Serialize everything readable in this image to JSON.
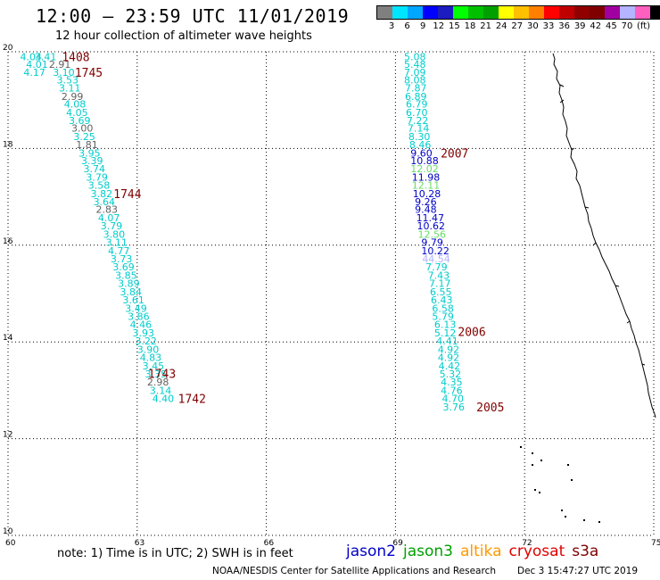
{
  "header": {
    "title": "12:00 – 23:59 UTC 11/01/2019",
    "subtitle": "12 hour collection of altimeter wave heights"
  },
  "legend": {
    "colors": [
      "#808080",
      "#00e5ff",
      "#00a6ff",
      "#0000ff",
      "#1c1cc0",
      "#00ff00",
      "#00c000",
      "#00a000",
      "#ffff00",
      "#ffc000",
      "#ff8000",
      "#ff0000",
      "#c00000",
      "#900000",
      "#800000",
      "#a000a0",
      "#b4b4ff",
      "#ff60c0",
      "#000000"
    ],
    "labels": [
      "3",
      "6",
      "9",
      "12",
      "15",
      "18",
      "21",
      "24",
      "27",
      "30",
      "33",
      "36",
      "39",
      "42",
      "45",
      "70"
    ],
    "unit": "(ft)"
  },
  "axes": {
    "x_ticks": [
      "60",
      "63",
      "66",
      "69",
      "72",
      "75"
    ],
    "y_ticks": [
      "10",
      "12",
      "14",
      "16",
      "18",
      "20"
    ],
    "xlim": [
      60,
      75
    ],
    "ylim": [
      10,
      20
    ]
  },
  "colors": {
    "jason2": "#0000c8",
    "jason3": "#00a000",
    "altika": "#ff9900",
    "cryosat": "#e00000",
    "s3a": "#800000",
    "cyan": "#00cccc",
    "gray": "#606060",
    "lightgreen": "#66dd66",
    "lavender": "#b4b4ff"
  },
  "tracks": [
    {
      "name": "1745",
      "label_lon": 61.55,
      "label_lat": 19.58,
      "label_color": "s3a",
      "points": [
        {
          "lon": 60.28,
          "lat": 19.9,
          "v": "4.04",
          "c": "cyan"
        },
        {
          "lon": 60.62,
          "lat": 19.9,
          "v": "3.41",
          "c": "cyan"
        },
        {
          "lon": 60.42,
          "lat": 19.74,
          "v": "4.01",
          "c": "cyan"
        },
        {
          "lon": 60.95,
          "lat": 19.74,
          "v": "2.91",
          "c": "gray"
        },
        {
          "lon": 60.36,
          "lat": 19.58,
          "v": "4.17",
          "c": "cyan"
        },
        {
          "lon": 61.04,
          "lat": 19.58,
          "v": "3.10",
          "c": "cyan"
        },
        {
          "lon": 61.13,
          "lat": 19.42,
          "v": "3.53",
          "c": "cyan"
        },
        {
          "lon": 61.18,
          "lat": 19.25,
          "v": "3.11",
          "c": "cyan"
        },
        {
          "lon": 61.24,
          "lat": 19.08,
          "v": "2.99",
          "c": "gray"
        },
        {
          "lon": 61.3,
          "lat": 18.92,
          "v": "4.08",
          "c": "cyan"
        },
        {
          "lon": 61.35,
          "lat": 18.75,
          "v": "4.05",
          "c": "cyan"
        },
        {
          "lon": 61.41,
          "lat": 18.58,
          "v": "3.69",
          "c": "cyan"
        },
        {
          "lon": 61.47,
          "lat": 18.42,
          "v": "3.00",
          "c": "gray"
        },
        {
          "lon": 61.52,
          "lat": 18.25,
          "v": "3.25",
          "c": "cyan"
        },
        {
          "lon": 61.58,
          "lat": 18.08,
          "v": "1.81",
          "c": "gray"
        },
        {
          "lon": 61.64,
          "lat": 17.91,
          "v": "3.95",
          "c": "cyan"
        },
        {
          "lon": 61.7,
          "lat": 17.75,
          "v": "3.39",
          "c": "cyan"
        },
        {
          "lon": 61.75,
          "lat": 17.58,
          "v": "3.74",
          "c": "cyan"
        },
        {
          "lon": 61.81,
          "lat": 17.41,
          "v": "3.79",
          "c": "cyan"
        },
        {
          "lon": 61.86,
          "lat": 17.24,
          "v": "3.58",
          "c": "cyan"
        },
        {
          "lon": 61.92,
          "lat": 17.07,
          "v": "3.82",
          "c": "cyan"
        },
        {
          "lon": 61.98,
          "lat": 16.9,
          "v": "3.64",
          "c": "cyan"
        },
        {
          "lon": 62.04,
          "lat": 16.74,
          "v": "2.83",
          "c": "gray"
        },
        {
          "lon": 62.09,
          "lat": 16.57,
          "v": "4.07",
          "c": "cyan"
        },
        {
          "lon": 62.15,
          "lat": 16.4,
          "v": "3.79",
          "c": "cyan"
        },
        {
          "lon": 62.21,
          "lat": 16.23,
          "v": "3.80",
          "c": "cyan"
        },
        {
          "lon": 62.27,
          "lat": 16.06,
          "v": "3.11",
          "c": "cyan"
        },
        {
          "lon": 62.32,
          "lat": 15.89,
          "v": "4.77",
          "c": "cyan"
        },
        {
          "lon": 62.38,
          "lat": 15.72,
          "v": "3.73",
          "c": "cyan"
        }
      ]
    },
    {
      "name": "1744",
      "label_lon": 62.45,
      "label_lat": 17.07,
      "label_color": "s3a",
      "points": []
    },
    {
      "name": "1743",
      "label_lon": 63.25,
      "label_lat": 13.35,
      "label_color": "s3a",
      "points": [
        {
          "lon": 62.43,
          "lat": 15.55,
          "v": "3.69",
          "c": "cyan"
        },
        {
          "lon": 62.49,
          "lat": 15.38,
          "v": "3.85",
          "c": "cyan"
        },
        {
          "lon": 62.55,
          "lat": 15.21,
          "v": "3.89",
          "c": "cyan"
        },
        {
          "lon": 62.6,
          "lat": 15.04,
          "v": "3.84",
          "c": "cyan"
        },
        {
          "lon": 62.66,
          "lat": 14.87,
          "v": "3.61",
          "c": "cyan"
        },
        {
          "lon": 62.72,
          "lat": 14.7,
          "v": "3.49",
          "c": "cyan"
        },
        {
          "lon": 62.78,
          "lat": 14.53,
          "v": "3.86",
          "c": "cyan"
        },
        {
          "lon": 62.83,
          "lat": 14.36,
          "v": "4.46",
          "c": "cyan"
        },
        {
          "lon": 62.89,
          "lat": 14.19,
          "v": "3.93",
          "c": "cyan"
        },
        {
          "lon": 62.95,
          "lat": 14.02,
          "v": "3.22",
          "c": "cyan"
        },
        {
          "lon": 63.0,
          "lat": 13.85,
          "v": "3.90",
          "c": "cyan"
        },
        {
          "lon": 63.06,
          "lat": 13.68,
          "v": "4.83",
          "c": "cyan"
        },
        {
          "lon": 63.12,
          "lat": 13.51,
          "v": "3.45",
          "c": "cyan"
        },
        {
          "lon": 63.18,
          "lat": 13.34,
          "v": "3.35",
          "c": "cyan"
        },
        {
          "lon": 63.23,
          "lat": 13.17,
          "v": "2.98",
          "c": "gray"
        },
        {
          "lon": 63.29,
          "lat": 13.0,
          "v": "3.14",
          "c": "cyan"
        },
        {
          "lon": 63.35,
          "lat": 12.83,
          "v": "4.40",
          "c": "cyan"
        }
      ]
    },
    {
      "name": "1742",
      "label_lon": 63.95,
      "label_lat": 12.83,
      "label_color": "s3a",
      "points": []
    },
    {
      "name": "1408",
      "label_lon": 61.25,
      "label_lat": 19.9,
      "label_color": "altika",
      "points": []
    },
    {
      "name": "2007",
      "label_lon": 70.05,
      "label_lat": 17.91,
      "label_color": "cryosat",
      "points": [
        {
          "lon": 69.2,
          "lat": 19.9,
          "v": "5.08",
          "c": "cyan"
        },
        {
          "lon": 69.2,
          "lat": 19.74,
          "v": "5.48",
          "c": "cyan"
        },
        {
          "lon": 69.2,
          "lat": 19.58,
          "v": "7.09",
          "c": "cyan"
        },
        {
          "lon": 69.2,
          "lat": 19.42,
          "v": "8.08",
          "c": "cyan"
        },
        {
          "lon": 69.22,
          "lat": 19.25,
          "v": "7.87",
          "c": "cyan"
        },
        {
          "lon": 69.22,
          "lat": 19.08,
          "v": "6.89",
          "c": "cyan"
        },
        {
          "lon": 69.24,
          "lat": 18.92,
          "v": "6.79",
          "c": "cyan"
        },
        {
          "lon": 69.24,
          "lat": 18.75,
          "v": "6.70",
          "c": "cyan"
        },
        {
          "lon": 69.26,
          "lat": 18.58,
          "v": "7.22",
          "c": "cyan"
        },
        {
          "lon": 69.28,
          "lat": 18.42,
          "v": "7.14",
          "c": "cyan"
        },
        {
          "lon": 69.3,
          "lat": 18.25,
          "v": "8.30",
          "c": "cyan"
        },
        {
          "lon": 69.32,
          "lat": 18.08,
          "v": "8.46",
          "c": "cyan"
        },
        {
          "lon": 69.35,
          "lat": 17.91,
          "v": "9.60",
          "c": "jason2"
        },
        {
          "lon": 69.35,
          "lat": 17.75,
          "v": "10.88",
          "c": "jason2"
        },
        {
          "lon": 69.35,
          "lat": 17.58,
          "v": "12.02",
          "c": "lightgreen"
        },
        {
          "lon": 69.38,
          "lat": 17.41,
          "v": "11.98",
          "c": "jason2"
        },
        {
          "lon": 69.38,
          "lat": 17.24,
          "v": "12.11",
          "c": "lightgreen"
        },
        {
          "lon": 69.4,
          "lat": 17.07,
          "v": "10.28",
          "c": "jason2"
        },
        {
          "lon": 69.45,
          "lat": 16.9,
          "v": "9.26",
          "c": "jason2"
        },
        {
          "lon": 69.45,
          "lat": 16.74,
          "v": "9.48",
          "c": "jason2"
        },
        {
          "lon": 69.48,
          "lat": 16.57,
          "v": "11.47",
          "c": "jason2"
        },
        {
          "lon": 69.5,
          "lat": 16.4,
          "v": "10.62",
          "c": "jason2"
        },
        {
          "lon": 69.52,
          "lat": 16.23,
          "v": "12.56",
          "c": "lightgreen"
        },
        {
          "lon": 69.6,
          "lat": 16.06,
          "v": "9.79",
          "c": "jason2"
        },
        {
          "lon": 69.6,
          "lat": 15.89,
          "v": "10.22",
          "c": "jason2"
        },
        {
          "lon": 69.62,
          "lat": 15.72,
          "v": "44.54",
          "c": "lavender"
        },
        {
          "lon": 69.7,
          "lat": 15.55,
          "v": "7.79",
          "c": "cyan"
        }
      ]
    },
    {
      "name": "2006",
      "label_lon": 70.45,
      "label_lat": 14.22,
      "label_color": "cryosat",
      "points": [
        {
          "lon": 69.75,
          "lat": 15.38,
          "v": "7.43",
          "c": "cyan"
        },
        {
          "lon": 69.78,
          "lat": 15.21,
          "v": "7.17",
          "c": "cyan"
        },
        {
          "lon": 69.8,
          "lat": 15.04,
          "v": "6.55",
          "c": "cyan"
        },
        {
          "lon": 69.82,
          "lat": 14.87,
          "v": "6.43",
          "c": "cyan"
        },
        {
          "lon": 69.85,
          "lat": 14.7,
          "v": "6.58",
          "c": "cyan"
        },
        {
          "lon": 69.85,
          "lat": 14.53,
          "v": "5.79",
          "c": "cyan"
        },
        {
          "lon": 69.9,
          "lat": 14.36,
          "v": "6.13",
          "c": "cyan"
        },
        {
          "lon": 69.9,
          "lat": 14.19,
          "v": "5.12",
          "c": "cyan"
        },
        {
          "lon": 69.95,
          "lat": 14.02,
          "v": "4.41",
          "c": "cyan"
        },
        {
          "lon": 69.98,
          "lat": 13.85,
          "v": "4.92",
          "c": "cyan"
        },
        {
          "lon": 69.98,
          "lat": 13.68,
          "v": "4.92",
          "c": "cyan"
        },
        {
          "lon": 70.0,
          "lat": 13.51,
          "v": "4.42",
          "c": "cyan"
        },
        {
          "lon": 70.02,
          "lat": 13.34,
          "v": "5.32",
          "c": "cyan"
        },
        {
          "lon": 70.05,
          "lat": 13.17,
          "v": "4.35",
          "c": "cyan"
        },
        {
          "lon": 70.05,
          "lat": 13.0,
          "v": "4.76",
          "c": "cyan"
        },
        {
          "lon": 70.08,
          "lat": 12.83,
          "v": "4.70",
          "c": "cyan"
        },
        {
          "lon": 70.1,
          "lat": 12.66,
          "v": "3.76",
          "c": "cyan"
        }
      ]
    },
    {
      "name": "2005",
      "label_lon": 70.88,
      "label_lat": 12.66,
      "label_color": "cryosat",
      "points": []
    }
  ],
  "footer": {
    "note": "note: 1) Time is in UTC; 2) SWH is in feet",
    "satellites": [
      {
        "label": "jason2",
        "color": "jason2"
      },
      {
        "label": "jason3",
        "color": "jason3"
      },
      {
        "label": "altika",
        "color": "altika"
      },
      {
        "label": "cryosat",
        "color": "cryosat"
      },
      {
        "label": "s3a",
        "color": "s3a"
      }
    ],
    "credit": "NOAA/NESDIS Center for Satellite Applications and Research",
    "date": "Dec  3 15:47:27 UTC 2019"
  }
}
